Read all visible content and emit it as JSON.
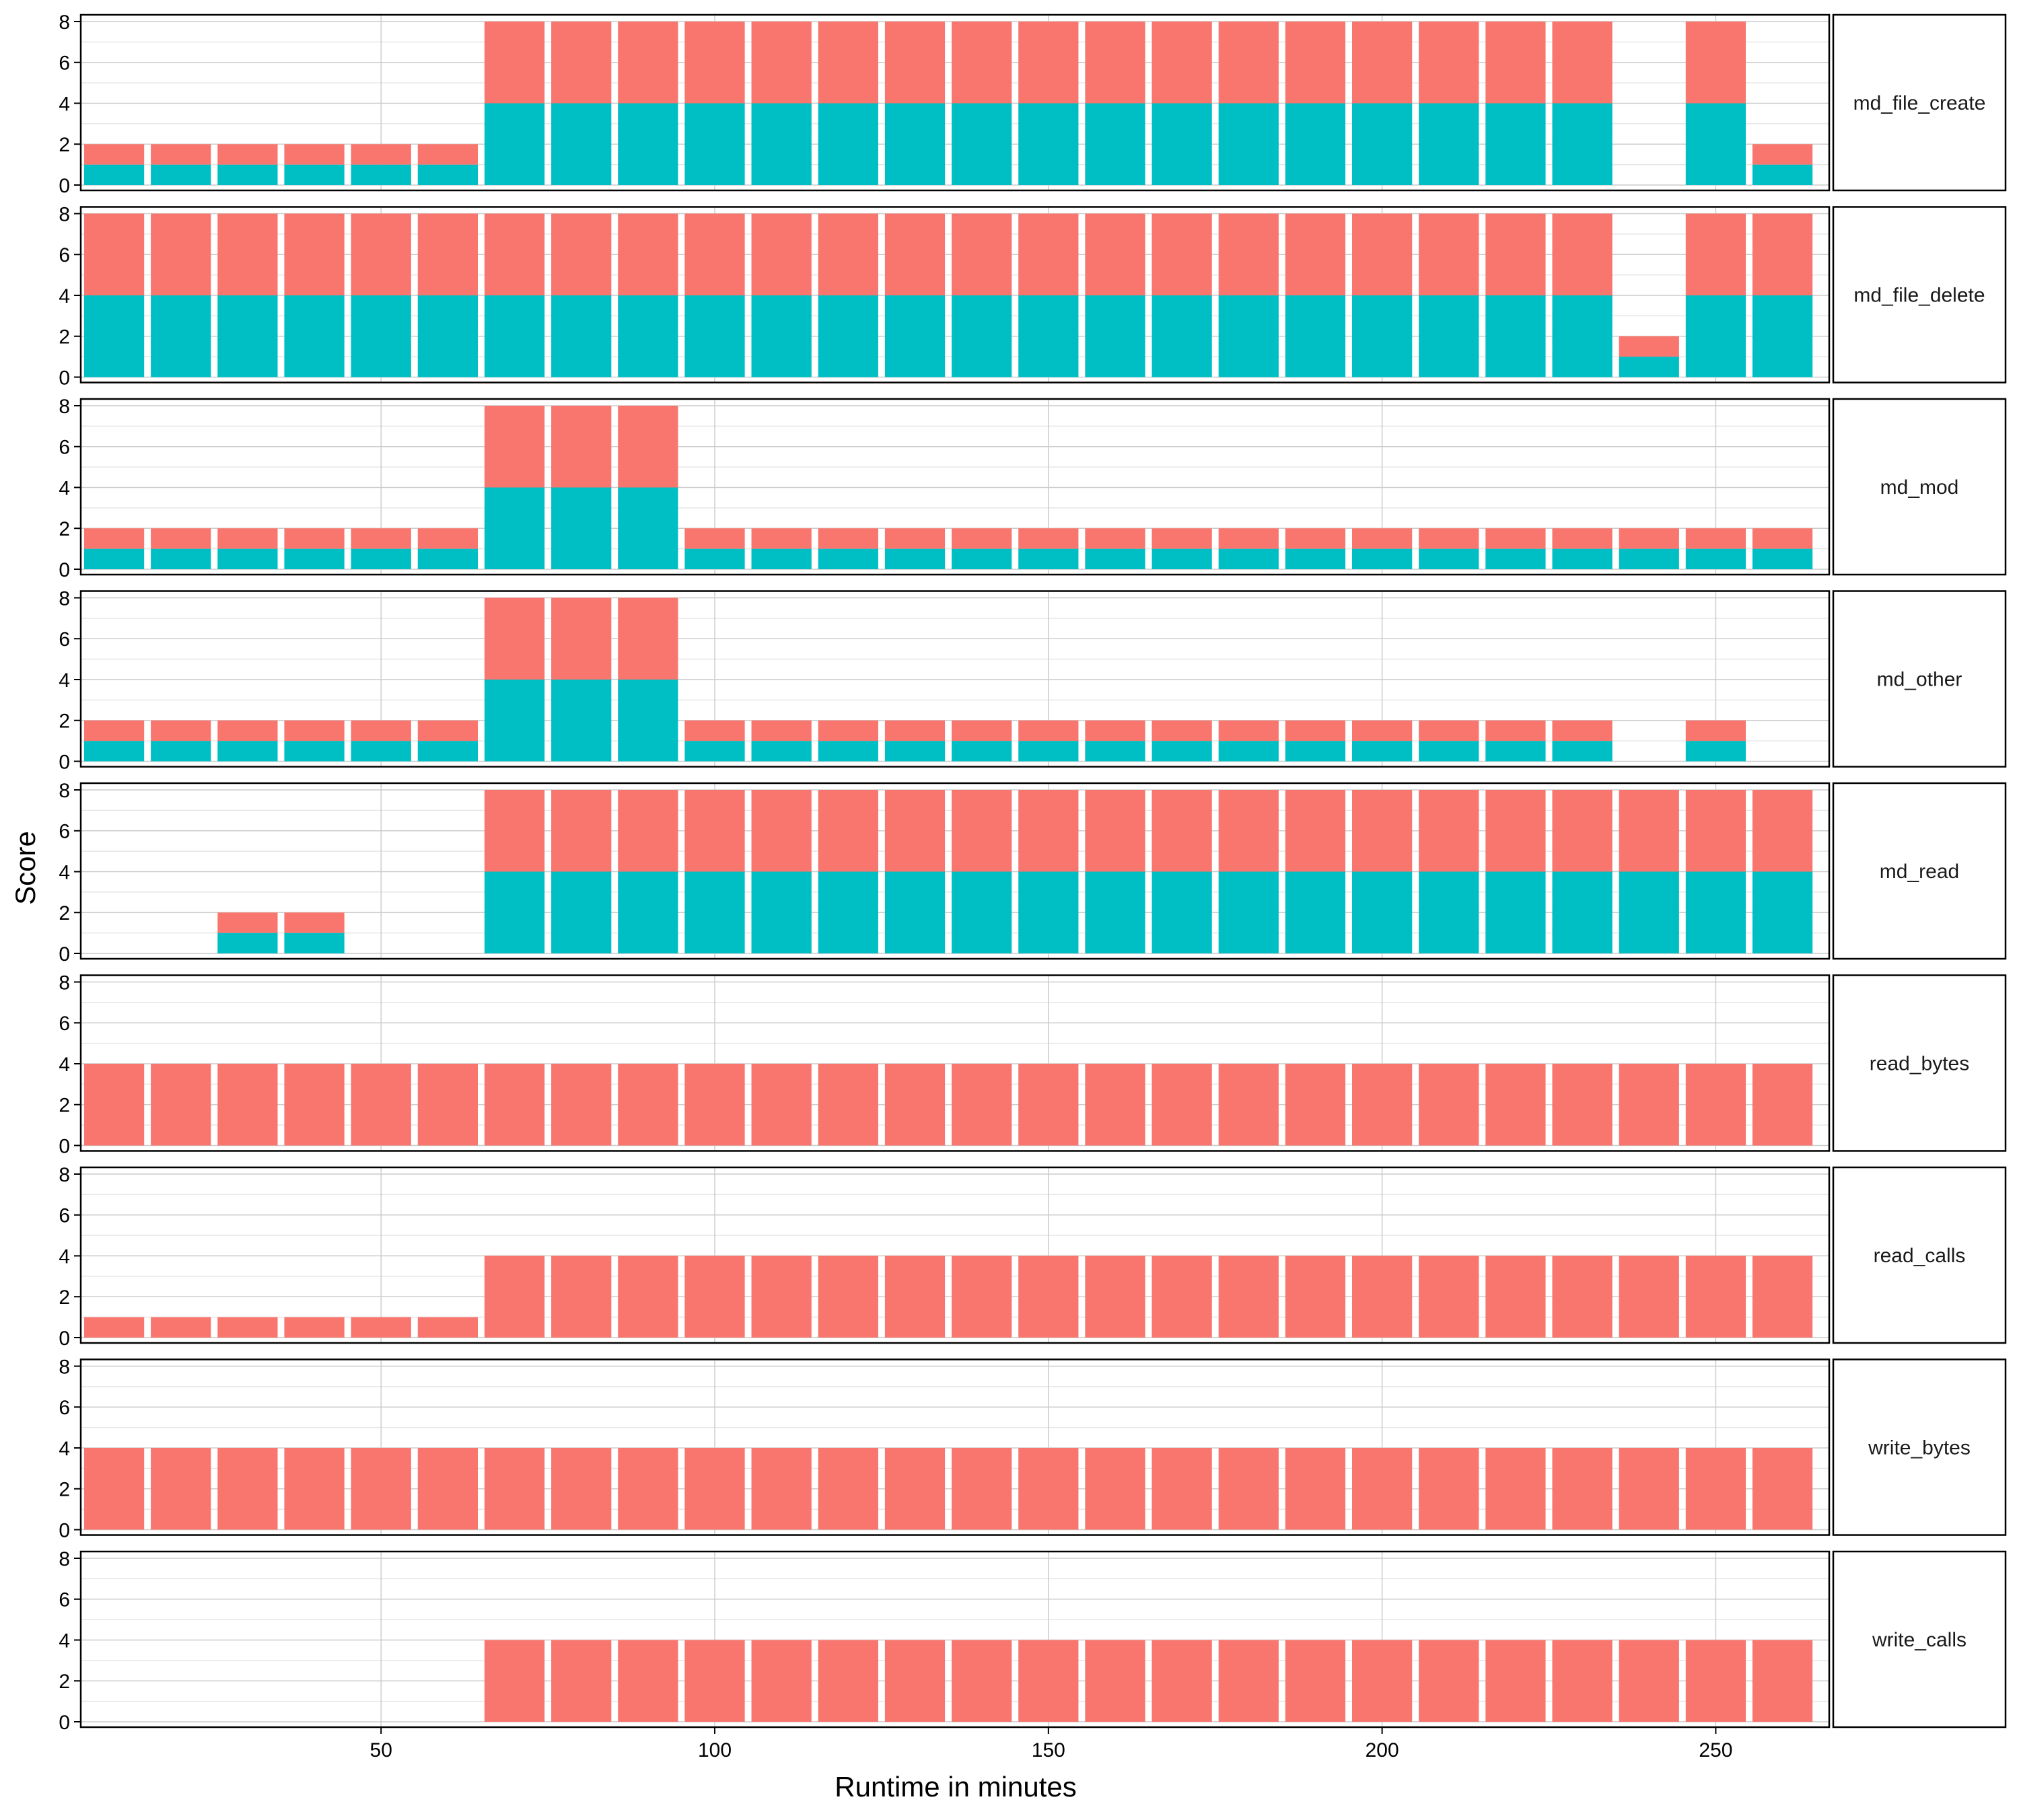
{
  "chart_data": {
    "type": "bar",
    "stacked": true,
    "faceted": true,
    "xlabel": "Runtime in minutes",
    "ylabel": "Score",
    "xlim": [
      5,
      267
    ],
    "ylim": [
      0,
      8
    ],
    "x_ticks": [
      50,
      100,
      150,
      200,
      250
    ],
    "y_ticks": [
      0,
      2,
      4,
      6,
      8
    ],
    "grid": true,
    "legend": "none",
    "colors": {
      "base": "#00BFC4",
      "top": "#F8766D"
    },
    "x": [
      10,
      20,
      30,
      40,
      50,
      60,
      70,
      80,
      90,
      100,
      110,
      120,
      130,
      140,
      150,
      160,
      170,
      180,
      190,
      200,
      210,
      220,
      230,
      240,
      250,
      260
    ],
    "panels": [
      {
        "label": "md_file_create",
        "cyan": [
          1,
          1,
          1,
          1,
          1,
          1,
          4,
          4,
          4,
          4,
          4,
          4,
          4,
          4,
          4,
          4,
          4,
          4,
          4,
          4,
          4,
          4,
          4,
          0,
          4,
          1
        ],
        "red": [
          1,
          1,
          1,
          1,
          1,
          1,
          4,
          4,
          4,
          4,
          4,
          4,
          4,
          4,
          4,
          4,
          4,
          4,
          4,
          4,
          4,
          4,
          4,
          0,
          4,
          1
        ]
      },
      {
        "label": "md_file_delete",
        "cyan": [
          4,
          4,
          4,
          4,
          4,
          4,
          4,
          4,
          4,
          4,
          4,
          4,
          4,
          4,
          4,
          4,
          4,
          4,
          4,
          4,
          4,
          4,
          4,
          1,
          4,
          4
        ],
        "red": [
          4,
          4,
          4,
          4,
          4,
          4,
          4,
          4,
          4,
          4,
          4,
          4,
          4,
          4,
          4,
          4,
          4,
          4,
          4,
          4,
          4,
          4,
          4,
          1,
          4,
          4
        ]
      },
      {
        "label": "md_mod",
        "cyan": [
          1,
          1,
          1,
          1,
          1,
          1,
          4,
          4,
          4,
          1,
          1,
          1,
          1,
          1,
          1,
          1,
          1,
          1,
          1,
          1,
          1,
          1,
          1,
          1,
          1,
          1
        ],
        "red": [
          1,
          1,
          1,
          1,
          1,
          1,
          4,
          4,
          4,
          1,
          1,
          1,
          1,
          1,
          1,
          1,
          1,
          1,
          1,
          1,
          1,
          1,
          1,
          1,
          1,
          1
        ]
      },
      {
        "label": "md_other",
        "cyan": [
          1,
          1,
          1,
          1,
          1,
          1,
          4,
          4,
          4,
          1,
          1,
          1,
          1,
          1,
          1,
          1,
          1,
          1,
          1,
          1,
          1,
          1,
          1,
          0,
          1,
          0
        ],
        "red": [
          1,
          1,
          1,
          1,
          1,
          1,
          4,
          4,
          4,
          1,
          1,
          1,
          1,
          1,
          1,
          1,
          1,
          1,
          1,
          1,
          1,
          1,
          1,
          0,
          1,
          0
        ]
      },
      {
        "label": "md_read",
        "cyan": [
          0,
          0,
          1,
          1,
          0,
          0,
          4,
          4,
          4,
          4,
          4,
          4,
          4,
          4,
          4,
          4,
          4,
          4,
          4,
          4,
          4,
          4,
          4,
          4,
          4,
          4
        ],
        "red": [
          0,
          0,
          1,
          1,
          0,
          0,
          4,
          4,
          4,
          4,
          4,
          4,
          4,
          4,
          4,
          4,
          4,
          4,
          4,
          4,
          4,
          4,
          4,
          4,
          4,
          4
        ]
      },
      {
        "label": "read_bytes",
        "cyan": [
          0,
          0,
          0,
          0,
          0,
          0,
          0,
          0,
          0,
          0,
          0,
          0,
          0,
          0,
          0,
          0,
          0,
          0,
          0,
          0,
          0,
          0,
          0,
          0,
          0,
          0
        ],
        "red": [
          4,
          4,
          4,
          4,
          4,
          4,
          4,
          4,
          4,
          4,
          4,
          4,
          4,
          4,
          4,
          4,
          4,
          4,
          4,
          4,
          4,
          4,
          4,
          4,
          4,
          4
        ]
      },
      {
        "label": "read_calls",
        "cyan": [
          0,
          0,
          0,
          0,
          0,
          0,
          0,
          0,
          0,
          0,
          0,
          0,
          0,
          0,
          0,
          0,
          0,
          0,
          0,
          0,
          0,
          0,
          0,
          0,
          0,
          0
        ],
        "red": [
          1,
          1,
          1,
          1,
          1,
          1,
          4,
          4,
          4,
          4,
          4,
          4,
          4,
          4,
          4,
          4,
          4,
          4,
          4,
          4,
          4,
          4,
          4,
          4,
          4,
          4
        ]
      },
      {
        "label": "write_bytes",
        "cyan": [
          0,
          0,
          0,
          0,
          0,
          0,
          0,
          0,
          0,
          0,
          0,
          0,
          0,
          0,
          0,
          0,
          0,
          0,
          0,
          0,
          0,
          0,
          0,
          0,
          0,
          0
        ],
        "red": [
          4,
          4,
          4,
          4,
          4,
          4,
          4,
          4,
          4,
          4,
          4,
          4,
          4,
          4,
          4,
          4,
          4,
          4,
          4,
          4,
          4,
          4,
          4,
          4,
          4,
          4
        ]
      },
      {
        "label": "write_calls",
        "cyan": [
          0,
          0,
          0,
          0,
          0,
          0,
          0,
          0,
          0,
          0,
          0,
          0,
          0,
          0,
          0,
          0,
          0,
          0,
          0,
          0,
          0,
          0,
          0,
          0,
          0,
          0
        ],
        "red": [
          0,
          0,
          0,
          0,
          0,
          0,
          4,
          4,
          4,
          4,
          4,
          4,
          4,
          4,
          4,
          4,
          4,
          4,
          4,
          4,
          4,
          4,
          4,
          4,
          4,
          4
        ]
      }
    ]
  }
}
